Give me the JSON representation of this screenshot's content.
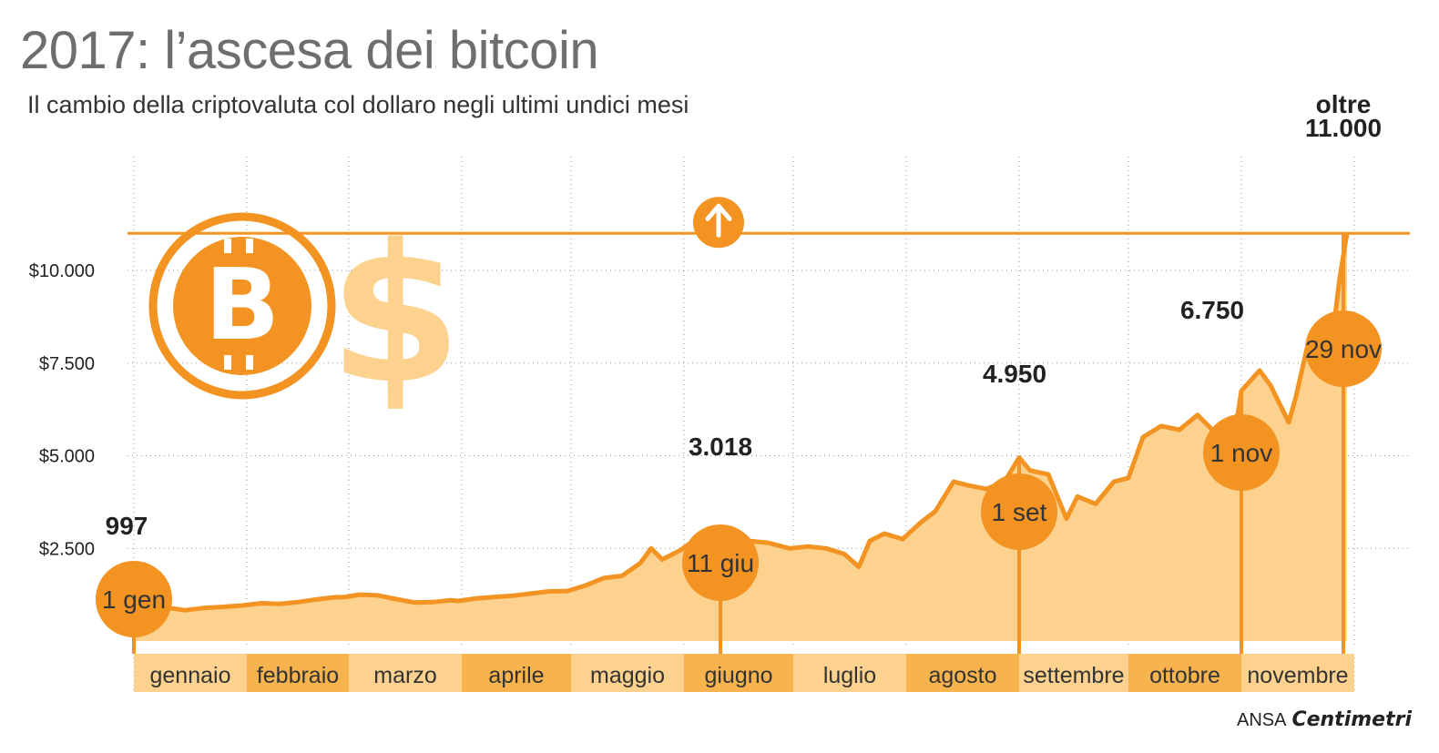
{
  "title": "2017: l’ascesa dei bitcoin",
  "subtitle": "Il cambio della criptovaluta col dollaro negli ultimi undici mesi",
  "credit": {
    "agency": "ANSA",
    "brand": "Centimetri"
  },
  "colors": {
    "accent": "#f39322",
    "fill": "#fdd28e",
    "month_band": "#fdd28e",
    "month_band_alt": "#f7b34e",
    "title": "#6d6e70"
  },
  "icons": [
    "bitcoin-coin-icon",
    "dollar-sign-icon",
    "up-arrow-icon"
  ],
  "chart_data": {
    "type": "area",
    "title": "2017: l’ascesa dei bitcoin",
    "subtitle": "Il cambio della criptovaluta col dollaro negli ultimi undici mesi",
    "xlabel": "",
    "ylabel": "",
    "ylim": [
      0,
      11000
    ],
    "y_ticks": [
      {
        "value": 2500,
        "label": "$2.500"
      },
      {
        "value": 5000,
        "label": "$5.000"
      },
      {
        "value": 7500,
        "label": "$7.500"
      },
      {
        "value": 10000,
        "label": "$10.000"
      }
    ],
    "months": [
      "gennaio",
      "febbraio",
      "marzo",
      "aprile",
      "maggio",
      "giugno",
      "luglio",
      "agosto",
      "settembre",
      "ottobre",
      "novembre"
    ],
    "reference_line": {
      "value": 11000
    },
    "series": [
      {
        "values": [
          [
            1,
            997
          ],
          [
            5,
            1130
          ],
          [
            10,
            900
          ],
          [
            15,
            830
          ],
          [
            20,
            890
          ],
          [
            25,
            920
          ],
          [
            31,
            960
          ],
          [
            36,
            1020
          ],
          [
            41,
            1000
          ],
          [
            46,
            1050
          ],
          [
            51,
            1120
          ],
          [
            56,
            1180
          ],
          [
            59,
            1190
          ],
          [
            63,
            1250
          ],
          [
            68,
            1230
          ],
          [
            73,
            1130
          ],
          [
            78,
            1040
          ],
          [
            83,
            1050
          ],
          [
            88,
            1100
          ],
          [
            90,
            1080
          ],
          [
            95,
            1150
          ],
          [
            100,
            1190
          ],
          [
            105,
            1220
          ],
          [
            110,
            1280
          ],
          [
            115,
            1340
          ],
          [
            120,
            1350
          ],
          [
            125,
            1500
          ],
          [
            130,
            1700
          ],
          [
            135,
            1760
          ],
          [
            140,
            2100
          ],
          [
            143,
            2500
          ],
          [
            146,
            2200
          ],
          [
            151,
            2450
          ],
          [
            156,
            2800
          ],
          [
            159,
            2900
          ],
          [
            162,
            3018
          ],
          [
            165,
            2600
          ],
          [
            170,
            2700
          ],
          [
            175,
            2650
          ],
          [
            181,
            2500
          ],
          [
            186,
            2550
          ],
          [
            191,
            2500
          ],
          [
            196,
            2350
          ],
          [
            200,
            2000
          ],
          [
            203,
            2700
          ],
          [
            207,
            2900
          ],
          [
            212,
            2750
          ],
          [
            217,
            3200
          ],
          [
            221,
            3500
          ],
          [
            226,
            4300
          ],
          [
            230,
            4200
          ],
          [
            235,
            4100
          ],
          [
            240,
            4300
          ],
          [
            244,
            4950
          ],
          [
            247,
            4600
          ],
          [
            252,
            4500
          ],
          [
            257,
            3300
          ],
          [
            260,
            3900
          ],
          [
            265,
            3700
          ],
          [
            270,
            4300
          ],
          [
            274,
            4400
          ],
          [
            278,
            5500
          ],
          [
            283,
            5800
          ],
          [
            288,
            5700
          ],
          [
            293,
            6100
          ],
          [
            298,
            5600
          ],
          [
            304,
            6100
          ],
          [
            305,
            6750
          ],
          [
            310,
            7300
          ],
          [
            313,
            6900
          ],
          [
            318,
            5900
          ],
          [
            320,
            6600
          ],
          [
            323,
            7900
          ],
          [
            327,
            8300
          ],
          [
            330,
            8200
          ],
          [
            332,
            9800
          ],
          [
            334,
            11000
          ]
        ]
      }
    ],
    "annotations": [
      {
        "day": 1,
        "value": 997,
        "value_label": "997",
        "date_label": "1 gen"
      },
      {
        "day": 162,
        "value": 3018,
        "value_label": "3.018",
        "date_label": "11 giu"
      },
      {
        "day": 244,
        "value": 4950,
        "value_label": "4.950",
        "date_label": "1 set"
      },
      {
        "day": 305,
        "value": 6750,
        "value_label": "6.750",
        "date_label": "1 nov"
      },
      {
        "day": 333,
        "value": 11000,
        "value_label_top": "oltre",
        "value_label": "11.000",
        "date_label": "29 nov"
      }
    ],
    "grid": true,
    "legend": "none"
  }
}
